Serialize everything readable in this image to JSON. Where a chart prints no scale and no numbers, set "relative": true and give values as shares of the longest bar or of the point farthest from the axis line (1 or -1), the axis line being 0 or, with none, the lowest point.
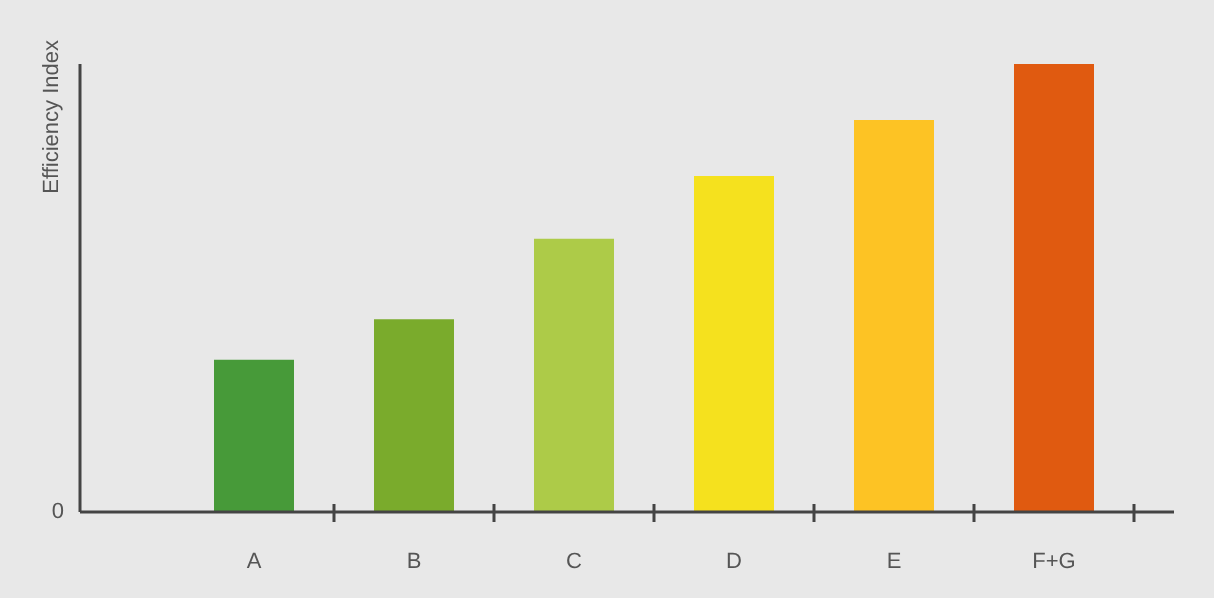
{
  "chart_data": {
    "type": "bar",
    "ylabel": "Efficiency Index",
    "categories": [
      "A",
      "B",
      "C",
      "D",
      "E",
      "F+G"
    ],
    "values": [
      0.34,
      0.43,
      0.61,
      0.75,
      0.875,
      1
    ],
    "colors": [
      "#479a39",
      "#7aab2c",
      "#adcb48",
      "#f5e11e",
      "#fdc324",
      "#e05a10"
    ],
    "relative": true,
    "annotations": [
      "0"
    ],
    "grid": false,
    "legend": false
  }
}
